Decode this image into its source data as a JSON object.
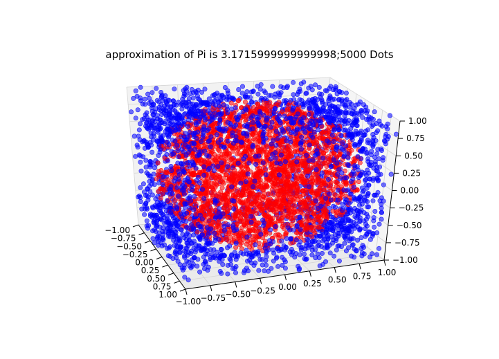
{
  "chart_data": {
    "type": "scatter",
    "title": "approximation of Pi is 3.1715999999999998;5000 Dots",
    "xlim": [
      -1.0,
      1.0
    ],
    "ylim": [
      -1.0,
      1.0
    ],
    "zlim": [
      -1.0,
      1.0
    ],
    "x_ticks": [
      "−1.00",
      "−0.75",
      "−0.50",
      "−0.25",
      "0.00",
      "0.25",
      "0.50",
      "0.75",
      "1.00"
    ],
    "y_ticks": [
      "−1.00",
      "−0.75",
      "−0.50",
      "−0.25",
      "0.00",
      "0.25",
      "0.50",
      "0.75",
      "1.00"
    ],
    "z_ticks": [
      "−1.00",
      "−0.75",
      "−0.50",
      "−0.25",
      "0.00",
      "0.25",
      "0.50",
      "0.75",
      "1.00"
    ],
    "grid": true,
    "total_points": 5000,
    "series": [
      {
        "color": "#ff0000",
        "description_region": "inside unit sphere"
      },
      {
        "color": "#0000ff",
        "description_region": "outside unit sphere"
      }
    ]
  }
}
